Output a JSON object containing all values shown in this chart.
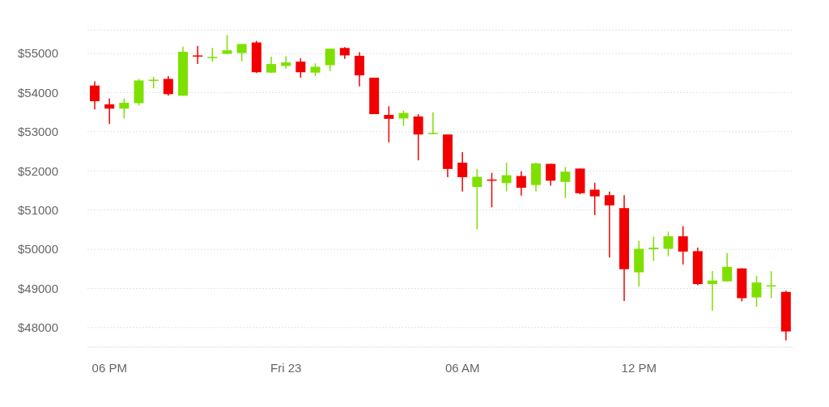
{
  "chart_data": {
    "type": "candlestick",
    "categories": [
      null,
      "06 PM",
      null,
      null,
      null,
      null,
      null,
      null,
      null,
      null,
      null,
      null,
      null,
      "Fri 23",
      null,
      null,
      null,
      null,
      null,
      null,
      null,
      null,
      null,
      null,
      null,
      "06 AM",
      null,
      null,
      null,
      null,
      null,
      null,
      null,
      null,
      null,
      null,
      null,
      "12 PM",
      null,
      null,
      null,
      null,
      null,
      null,
      null,
      null,
      null,
      null
    ],
    "ohlc": [
      [
        54180,
        54290,
        53570,
        53780
      ],
      [
        53700,
        53850,
        53200,
        53590
      ],
      [
        53590,
        53850,
        53340,
        53740
      ],
      [
        53730,
        54350,
        53670,
        54310
      ],
      [
        54310,
        54400,
        54110,
        54330
      ],
      [
        54350,
        54420,
        53920,
        53960
      ],
      [
        53920,
        55170,
        53920,
        55040
      ],
      [
        54950,
        55190,
        54730,
        54920
      ],
      [
        54900,
        55140,
        54790,
        54910
      ],
      [
        54990,
        55470,
        54980,
        55080
      ],
      [
        55010,
        55240,
        54800,
        55240
      ],
      [
        55280,
        55320,
        54500,
        54520
      ],
      [
        54510,
        54920,
        54500,
        54730
      ],
      [
        54680,
        54930,
        54610,
        54770
      ],
      [
        54790,
        54880,
        54380,
        54520
      ],
      [
        54510,
        54750,
        54420,
        54660
      ],
      [
        54700,
        55120,
        54550,
        55120
      ],
      [
        55140,
        55160,
        54860,
        54950
      ],
      [
        54940,
        55030,
        54160,
        54440
      ],
      [
        54380,
        54380,
        53450,
        53450
      ],
      [
        53430,
        53650,
        52730,
        53330
      ],
      [
        53340,
        53540,
        53150,
        53480
      ],
      [
        53390,
        53450,
        52270,
        52930
      ],
      [
        52940,
        53500,
        52940,
        52970
      ],
      [
        52930,
        52930,
        51840,
        52050
      ],
      [
        52210,
        52480,
        51470,
        51840
      ],
      [
        51590,
        52050,
        50510,
        51850
      ],
      [
        51780,
        51950,
        51070,
        51770
      ],
      [
        51690,
        52210,
        51480,
        51890
      ],
      [
        51870,
        51990,
        51370,
        51570
      ],
      [
        51640,
        52210,
        51480,
        52190
      ],
      [
        52180,
        52180,
        51620,
        51750
      ],
      [
        51720,
        52100,
        51310,
        51980
      ],
      [
        52060,
        52060,
        51400,
        51430
      ],
      [
        51520,
        51700,
        50870,
        51350
      ],
      [
        51380,
        51470,
        49790,
        51120
      ],
      [
        51050,
        51380,
        48680,
        49490
      ],
      [
        49410,
        50210,
        49050,
        50010
      ],
      [
        50000,
        50320,
        49700,
        50040
      ],
      [
        50010,
        50450,
        49820,
        50330
      ],
      [
        50330,
        50590,
        49610,
        49940
      ],
      [
        49950,
        50040,
        49080,
        49110
      ],
      [
        49110,
        49440,
        48430,
        49200
      ],
      [
        49180,
        49900,
        49180,
        49550
      ],
      [
        49510,
        49510,
        48670,
        48750
      ],
      [
        48770,
        49320,
        48530,
        49150
      ],
      [
        49060,
        49440,
        48750,
        49080
      ],
      [
        48910,
        48940,
        47670,
        47900
      ]
    ],
    "colors": [
      "#f20000",
      "#f20000",
      "#7ee000",
      "#7ee000",
      "#7ee000",
      "#f20000",
      "#7ee000",
      "#f20000",
      "#7ee000",
      "#7ee000",
      "#7ee000",
      "#f20000",
      "#7ee000",
      "#7ee000",
      "#f20000",
      "#7ee000",
      "#7ee000",
      "#f20000",
      "#f20000",
      "#f20000",
      "#f20000",
      "#7ee000",
      "#f20000",
      "#7ee000",
      "#f20000",
      "#f20000",
      "#7ee000",
      "#f20000",
      "#7ee000",
      "#f20000",
      "#7ee000",
      "#f20000",
      "#7ee000",
      "#f20000",
      "#f20000",
      "#f20000",
      "#f20000",
      "#7ee000",
      "#7ee000",
      "#7ee000",
      "#f20000",
      "#f20000",
      "#7ee000",
      "#7ee000",
      "#f20000",
      "#7ee000",
      "#7ee000",
      "#f20000"
    ],
    "ylim": [
      47500,
      55600
    ],
    "yticks": [
      {
        "value": 48000,
        "label": "$48000"
      },
      {
        "value": 49000,
        "label": "$49000"
      },
      {
        "value": 50000,
        "label": "$50000"
      },
      {
        "value": 51000,
        "label": "$51000"
      },
      {
        "value": 52000,
        "label": "$52000"
      },
      {
        "value": 53000,
        "label": "$53000"
      },
      {
        "value": 54000,
        "label": "$54000"
      },
      {
        "value": 55000,
        "label": "$55000"
      }
    ],
    "grid": "y"
  }
}
